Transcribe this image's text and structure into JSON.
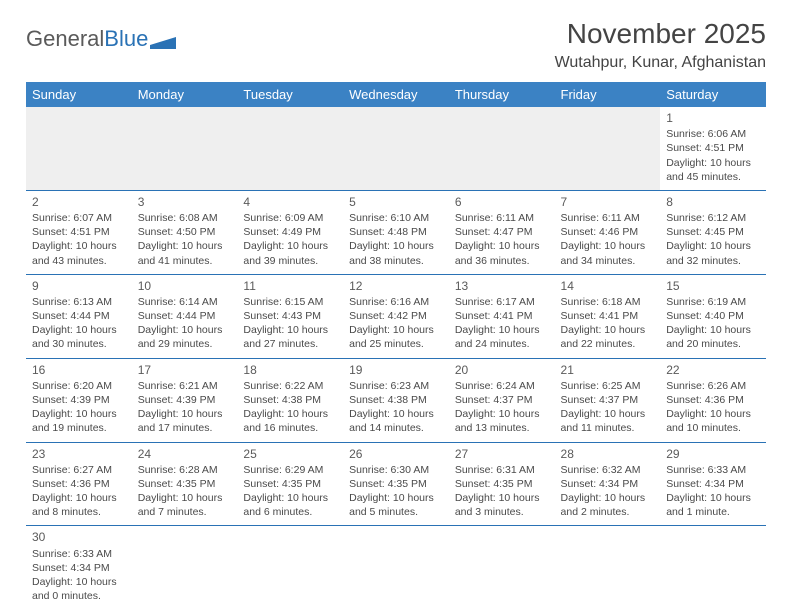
{
  "logo": {
    "text_a": "General",
    "text_b": "Blue"
  },
  "title": "November 2025",
  "location": "Wutahpur, Kunar, Afghanistan",
  "colors": {
    "header_bg": "#3b82c4",
    "header_text": "#ffffff",
    "border": "#2a72b5",
    "empty_bg": "#efefef",
    "text": "#4a4a4a"
  },
  "day_headers": [
    "Sunday",
    "Monday",
    "Tuesday",
    "Wednesday",
    "Thursday",
    "Friday",
    "Saturday"
  ],
  "weeks": [
    [
      null,
      null,
      null,
      null,
      null,
      null,
      {
        "n": "1",
        "sr": "Sunrise: 6:06 AM",
        "ss": "Sunset: 4:51 PM",
        "dl": "Daylight: 10 hours and 45 minutes."
      }
    ],
    [
      {
        "n": "2",
        "sr": "Sunrise: 6:07 AM",
        "ss": "Sunset: 4:51 PM",
        "dl": "Daylight: 10 hours and 43 minutes."
      },
      {
        "n": "3",
        "sr": "Sunrise: 6:08 AM",
        "ss": "Sunset: 4:50 PM",
        "dl": "Daylight: 10 hours and 41 minutes."
      },
      {
        "n": "4",
        "sr": "Sunrise: 6:09 AM",
        "ss": "Sunset: 4:49 PM",
        "dl": "Daylight: 10 hours and 39 minutes."
      },
      {
        "n": "5",
        "sr": "Sunrise: 6:10 AM",
        "ss": "Sunset: 4:48 PM",
        "dl": "Daylight: 10 hours and 38 minutes."
      },
      {
        "n": "6",
        "sr": "Sunrise: 6:11 AM",
        "ss": "Sunset: 4:47 PM",
        "dl": "Daylight: 10 hours and 36 minutes."
      },
      {
        "n": "7",
        "sr": "Sunrise: 6:11 AM",
        "ss": "Sunset: 4:46 PM",
        "dl": "Daylight: 10 hours and 34 minutes."
      },
      {
        "n": "8",
        "sr": "Sunrise: 6:12 AM",
        "ss": "Sunset: 4:45 PM",
        "dl": "Daylight: 10 hours and 32 minutes."
      }
    ],
    [
      {
        "n": "9",
        "sr": "Sunrise: 6:13 AM",
        "ss": "Sunset: 4:44 PM",
        "dl": "Daylight: 10 hours and 30 minutes."
      },
      {
        "n": "10",
        "sr": "Sunrise: 6:14 AM",
        "ss": "Sunset: 4:44 PM",
        "dl": "Daylight: 10 hours and 29 minutes."
      },
      {
        "n": "11",
        "sr": "Sunrise: 6:15 AM",
        "ss": "Sunset: 4:43 PM",
        "dl": "Daylight: 10 hours and 27 minutes."
      },
      {
        "n": "12",
        "sr": "Sunrise: 6:16 AM",
        "ss": "Sunset: 4:42 PM",
        "dl": "Daylight: 10 hours and 25 minutes."
      },
      {
        "n": "13",
        "sr": "Sunrise: 6:17 AM",
        "ss": "Sunset: 4:41 PM",
        "dl": "Daylight: 10 hours and 24 minutes."
      },
      {
        "n": "14",
        "sr": "Sunrise: 6:18 AM",
        "ss": "Sunset: 4:41 PM",
        "dl": "Daylight: 10 hours and 22 minutes."
      },
      {
        "n": "15",
        "sr": "Sunrise: 6:19 AM",
        "ss": "Sunset: 4:40 PM",
        "dl": "Daylight: 10 hours and 20 minutes."
      }
    ],
    [
      {
        "n": "16",
        "sr": "Sunrise: 6:20 AM",
        "ss": "Sunset: 4:39 PM",
        "dl": "Daylight: 10 hours and 19 minutes."
      },
      {
        "n": "17",
        "sr": "Sunrise: 6:21 AM",
        "ss": "Sunset: 4:39 PM",
        "dl": "Daylight: 10 hours and 17 minutes."
      },
      {
        "n": "18",
        "sr": "Sunrise: 6:22 AM",
        "ss": "Sunset: 4:38 PM",
        "dl": "Daylight: 10 hours and 16 minutes."
      },
      {
        "n": "19",
        "sr": "Sunrise: 6:23 AM",
        "ss": "Sunset: 4:38 PM",
        "dl": "Daylight: 10 hours and 14 minutes."
      },
      {
        "n": "20",
        "sr": "Sunrise: 6:24 AM",
        "ss": "Sunset: 4:37 PM",
        "dl": "Daylight: 10 hours and 13 minutes."
      },
      {
        "n": "21",
        "sr": "Sunrise: 6:25 AM",
        "ss": "Sunset: 4:37 PM",
        "dl": "Daylight: 10 hours and 11 minutes."
      },
      {
        "n": "22",
        "sr": "Sunrise: 6:26 AM",
        "ss": "Sunset: 4:36 PM",
        "dl": "Daylight: 10 hours and 10 minutes."
      }
    ],
    [
      {
        "n": "23",
        "sr": "Sunrise: 6:27 AM",
        "ss": "Sunset: 4:36 PM",
        "dl": "Daylight: 10 hours and 8 minutes."
      },
      {
        "n": "24",
        "sr": "Sunrise: 6:28 AM",
        "ss": "Sunset: 4:35 PM",
        "dl": "Daylight: 10 hours and 7 minutes."
      },
      {
        "n": "25",
        "sr": "Sunrise: 6:29 AM",
        "ss": "Sunset: 4:35 PM",
        "dl": "Daylight: 10 hours and 6 minutes."
      },
      {
        "n": "26",
        "sr": "Sunrise: 6:30 AM",
        "ss": "Sunset: 4:35 PM",
        "dl": "Daylight: 10 hours and 5 minutes."
      },
      {
        "n": "27",
        "sr": "Sunrise: 6:31 AM",
        "ss": "Sunset: 4:35 PM",
        "dl": "Daylight: 10 hours and 3 minutes."
      },
      {
        "n": "28",
        "sr": "Sunrise: 6:32 AM",
        "ss": "Sunset: 4:34 PM",
        "dl": "Daylight: 10 hours and 2 minutes."
      },
      {
        "n": "29",
        "sr": "Sunrise: 6:33 AM",
        "ss": "Sunset: 4:34 PM",
        "dl": "Daylight: 10 hours and 1 minute."
      }
    ],
    [
      {
        "n": "30",
        "sr": "Sunrise: 6:33 AM",
        "ss": "Sunset: 4:34 PM",
        "dl": "Daylight: 10 hours and 0 minutes."
      },
      null,
      null,
      null,
      null,
      null,
      null
    ]
  ]
}
